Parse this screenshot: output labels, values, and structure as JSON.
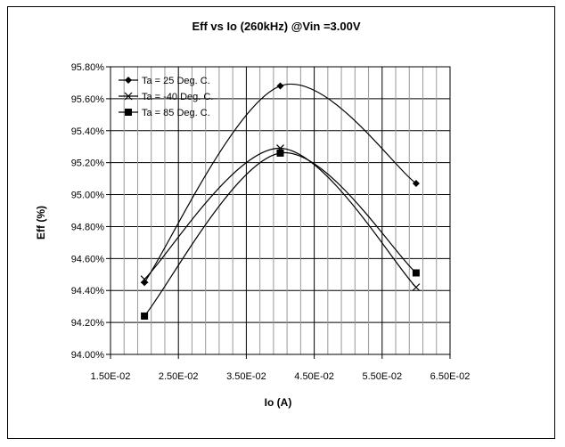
{
  "chart_data": {
    "type": "scatter",
    "title": "Eff vs Io (260kHz) @Vin =3.00V",
    "xlabel": "Io (A)",
    "ylabel": "Eff (%)",
    "xlim": [
      0.015,
      0.065
    ],
    "ylim": [
      94.0,
      95.8
    ],
    "x_ticks": [
      "1.50E-02",
      "2.50E-02",
      "3.50E-02",
      "4.50E-02",
      "5.50E-02",
      "6.50E-02"
    ],
    "x_tick_values": [
      0.015,
      0.025,
      0.035,
      0.045,
      0.055,
      0.065
    ],
    "y_ticks": [
      "94.00%",
      "94.20%",
      "94.40%",
      "94.60%",
      "94.80%",
      "95.00%",
      "95.20%",
      "95.40%",
      "95.60%",
      "95.80%"
    ],
    "y_tick_values": [
      94.0,
      94.2,
      94.4,
      94.6,
      94.8,
      95.0,
      95.2,
      95.4,
      95.6,
      95.8
    ],
    "grid": true,
    "smoothed_lines": true,
    "legend_position": "top-left",
    "series": [
      {
        "name": "Ta = 25 Deg. C.",
        "marker": "diamond",
        "x": [
          0.02,
          0.04,
          0.06
        ],
        "y": [
          94.45,
          95.68,
          95.07
        ]
      },
      {
        "name": "Ta = -40 Deg. C.",
        "marker": "x",
        "x": [
          0.02,
          0.04,
          0.06
        ],
        "y": [
          94.47,
          95.29,
          94.42
        ]
      },
      {
        "name": "Ta = 85 Deg. C.",
        "marker": "square",
        "x": [
          0.02,
          0.04,
          0.06
        ],
        "y": [
          94.24,
          95.26,
          94.51
        ]
      }
    ]
  }
}
